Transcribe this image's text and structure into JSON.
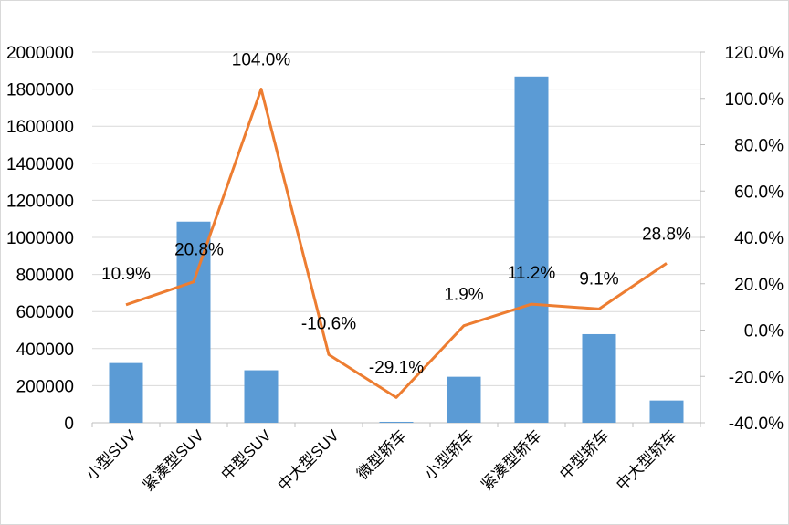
{
  "chart_data": {
    "type": "bar",
    "categories": [
      "小型SUV",
      "紧凑型SUV",
      "中型SUV",
      "中大型SUV",
      "微型轿车",
      "小型轿车",
      "紧凑型轿车",
      "中型轿车",
      "中大型轿车"
    ],
    "series": [
      {
        "type": "bar",
        "axis": "left",
        "values": [
          322000,
          1085000,
          283000,
          0,
          5000,
          248000,
          1868000,
          478000,
          120000
        ]
      },
      {
        "type": "line",
        "axis": "right",
        "values": [
          10.9,
          20.8,
          104.0,
          -10.6,
          -29.1,
          1.9,
          11.2,
          9.1,
          28.8
        ],
        "data_labels": [
          "10.9%",
          "20.8%",
          "104.0%",
          "-10.6%",
          "-29.1%",
          "1.9%",
          "11.2%",
          "9.1%",
          "28.8%"
        ]
      }
    ],
    "left_axis": {
      "ylim": [
        0,
        2000000
      ],
      "ticks": [
        "0",
        "200000",
        "400000",
        "600000",
        "800000",
        "1000000",
        "1200000",
        "1400000",
        "1600000",
        "1800000",
        "2000000"
      ]
    },
    "right_axis": {
      "ylim": [
        -40,
        120
      ],
      "ticks": [
        "-40.0%",
        "-20.0%",
        "0.0%",
        "20.0%",
        "40.0%",
        "60.0%",
        "80.0%",
        "100.0%",
        "120.0%"
      ]
    },
    "grid": true,
    "colors": {
      "bar": "#5b9bd5",
      "line": "#ed7d31"
    }
  }
}
